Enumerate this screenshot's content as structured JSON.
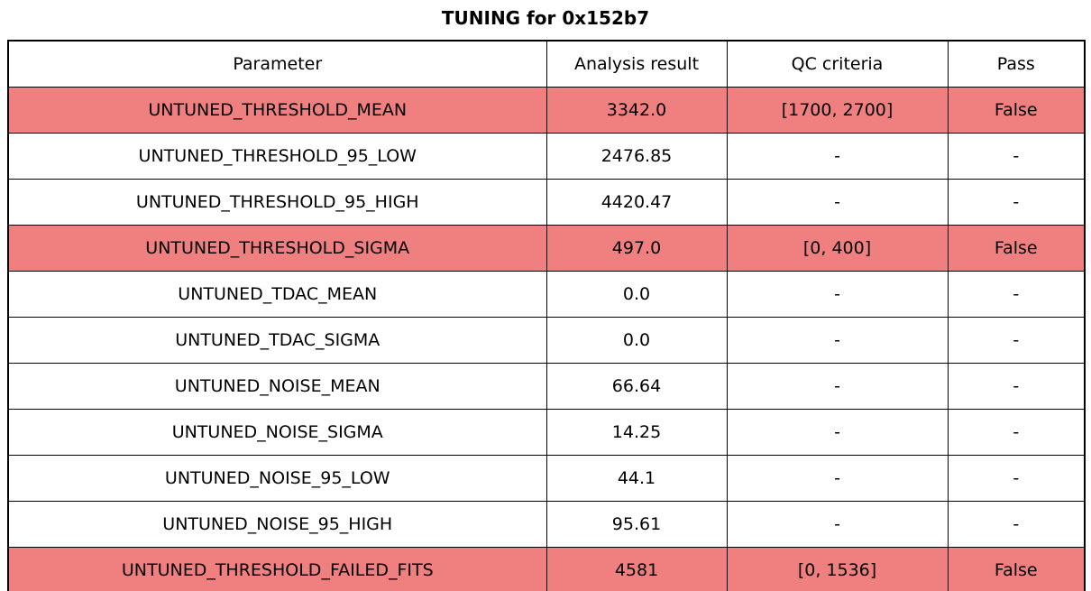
{
  "chart_data": {
    "type": "table",
    "title": "TUNING for 0x152b7",
    "columns": [
      "Parameter",
      "Analysis result",
      "QC criteria",
      "Pass"
    ],
    "rows": [
      {
        "parameter": "UNTUNED_THRESHOLD_MEAN",
        "analysis_result": "3342.0",
        "qc_criteria": "[1700, 2700]",
        "pass": "False",
        "highlight": true
      },
      {
        "parameter": "UNTUNED_THRESHOLD_95_LOW",
        "analysis_result": "2476.85",
        "qc_criteria": "-",
        "pass": "-",
        "highlight": false
      },
      {
        "parameter": "UNTUNED_THRESHOLD_95_HIGH",
        "analysis_result": "4420.47",
        "qc_criteria": "-",
        "pass": "-",
        "highlight": false
      },
      {
        "parameter": "UNTUNED_THRESHOLD_SIGMA",
        "analysis_result": "497.0",
        "qc_criteria": "[0, 400]",
        "pass": "False",
        "highlight": true
      },
      {
        "parameter": "UNTUNED_TDAC_MEAN",
        "analysis_result": "0.0",
        "qc_criteria": "-",
        "pass": "-",
        "highlight": false
      },
      {
        "parameter": "UNTUNED_TDAC_SIGMA",
        "analysis_result": "0.0",
        "qc_criteria": "-",
        "pass": "-",
        "highlight": false
      },
      {
        "parameter": "UNTUNED_NOISE_MEAN",
        "analysis_result": "66.64",
        "qc_criteria": "-",
        "pass": "-",
        "highlight": false
      },
      {
        "parameter": "UNTUNED_NOISE_SIGMA",
        "analysis_result": "14.25",
        "qc_criteria": "-",
        "pass": "-",
        "highlight": false
      },
      {
        "parameter": "UNTUNED_NOISE_95_LOW",
        "analysis_result": "44.1",
        "qc_criteria": "-",
        "pass": "-",
        "highlight": false
      },
      {
        "parameter": "UNTUNED_NOISE_95_HIGH",
        "analysis_result": "95.61",
        "qc_criteria": "-",
        "pass": "-",
        "highlight": false
      },
      {
        "parameter": "UNTUNED_THRESHOLD_FAILED_FITS",
        "analysis_result": "4581",
        "qc_criteria": "[0, 1536]",
        "pass": "False",
        "highlight": true
      }
    ],
    "legend_position": "none",
    "grid": "all-cell-borders"
  },
  "colors": {
    "highlight_row": "#f08080",
    "border": "#000000",
    "background": "#ffffff",
    "text": "#000000"
  }
}
